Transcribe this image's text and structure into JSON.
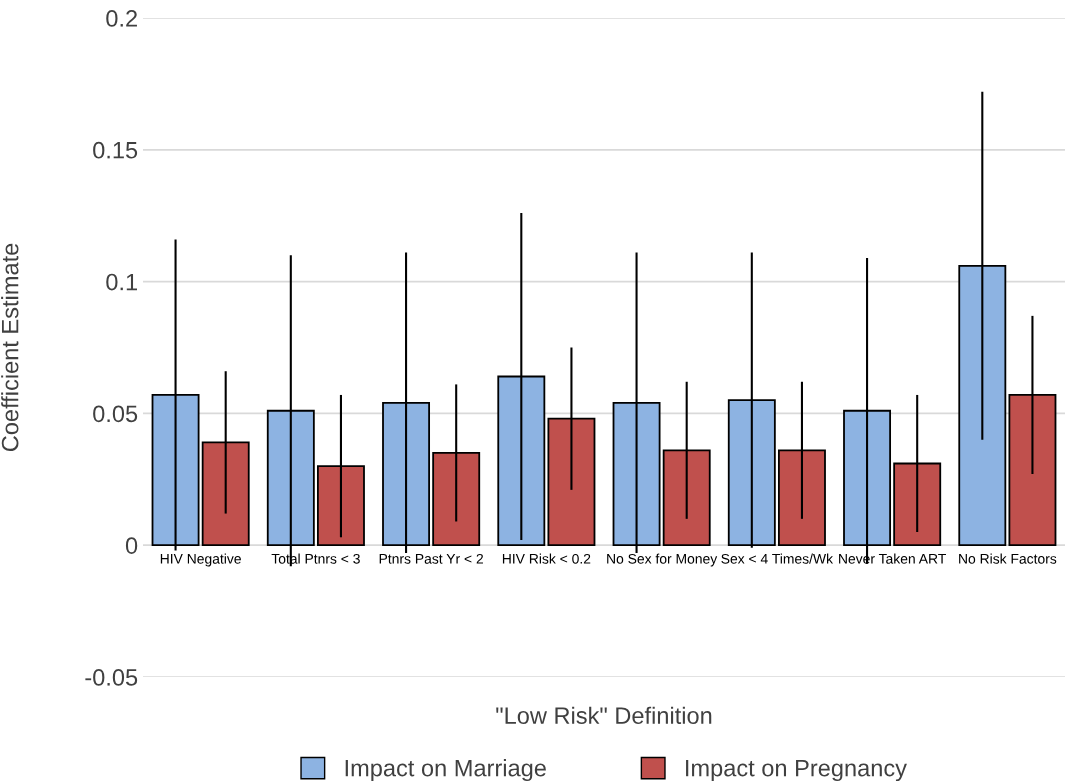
{
  "chart_data": {
    "type": "bar",
    "xlabel": "\"Low Risk\" Definition",
    "ylabel": "Coefficient Estimate",
    "categories": [
      "HIV Negative",
      "Total Ptnrs < 3",
      "Ptnrs Past Yr < 2",
      "HIV Risk < 0.2",
      "No Sex for Money",
      "Sex < 4 Times/Wk",
      "Never Taken ART",
      "No Risk Factors"
    ],
    "series": [
      {
        "name": "Impact on Marriage",
        "color": "#8db3e2",
        "values": [
          0.057,
          0.051,
          0.054,
          0.064,
          0.054,
          0.055,
          0.051,
          0.106
        ],
        "errors": [
          0.059,
          0.059,
          0.057,
          0.062,
          0.057,
          0.056,
          0.058,
          0.066
        ]
      },
      {
        "name": "Impact on Pregnancy",
        "color": "#c0504d",
        "values": [
          0.039,
          0.03,
          0.035,
          0.048,
          0.036,
          0.036,
          0.031,
          0.057
        ],
        "errors": [
          0.027,
          0.027,
          0.026,
          0.027,
          0.026,
          0.026,
          0.026,
          0.03
        ]
      }
    ],
    "ylim": [
      -0.05,
      0.2
    ],
    "yticks": [
      {
        "value": -0.05,
        "label": "-0.05"
      },
      0,
      0.05,
      0.1,
      0.15,
      0.2
    ],
    "grid": "y",
    "legend": "bottom"
  }
}
